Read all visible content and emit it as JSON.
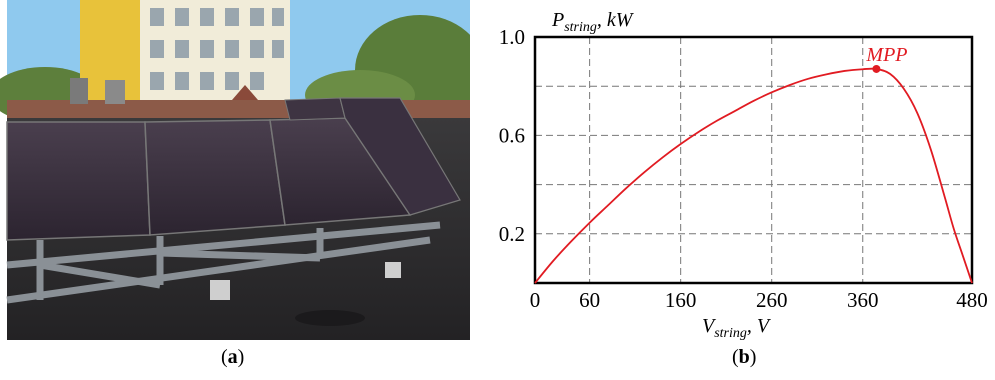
{
  "captions": {
    "a": "a",
    "b": "b"
  },
  "photo": {
    "subject": "",
    "colors": {
      "sky": "#8fc9ee",
      "panel": "#3a2f3c",
      "frame": "#8a9096",
      "roof": "#2b2a2c",
      "building": "#f1ecd9",
      "yellow": "#e8c23a",
      "tree": "#5a7d3a"
    }
  },
  "chart_data": {
    "type": "line",
    "title": "",
    "ylabel_main": "P",
    "ylabel_sub": "string",
    "ylabel_unit": ", kW",
    "xlabel_main": "V",
    "xlabel_sub": "string",
    "xlabel_unit": ", V",
    "xlim": [
      0,
      480
    ],
    "ylim": [
      0,
      1.0
    ],
    "x_ticks": [
      0,
      60,
      160,
      260,
      360,
      480
    ],
    "x_tick_labels": [
      "0",
      "60",
      "160",
      "260",
      "360",
      "480"
    ],
    "y_ticks": [
      0.2,
      0.6,
      1.0
    ],
    "y_tick_labels": [
      "0.2",
      "0.6",
      "1.0"
    ],
    "y_grid": [
      0.2,
      0.4,
      0.6,
      0.8
    ],
    "x_grid": [
      60,
      160,
      260,
      360
    ],
    "series": [
      {
        "color": "#e11b22",
        "x": [
          0,
          20,
          40,
          60,
          80,
          100,
          120,
          140,
          160,
          180,
          200,
          220,
          240,
          260,
          280,
          300,
          320,
          340,
          360,
          375,
          390,
          405,
          420,
          435,
          450,
          460,
          470,
          480
        ],
        "y": [
          0.0,
          0.09,
          0.17,
          0.245,
          0.315,
          0.385,
          0.45,
          0.51,
          0.565,
          0.615,
          0.66,
          0.7,
          0.74,
          0.775,
          0.805,
          0.83,
          0.848,
          0.862,
          0.869,
          0.87,
          0.85,
          0.79,
          0.69,
          0.54,
          0.35,
          0.22,
          0.11,
          0.0
        ]
      }
    ],
    "annotation": {
      "label": "MPP",
      "x": 375,
      "y": 0.87,
      "color": "#e11b22"
    }
  }
}
